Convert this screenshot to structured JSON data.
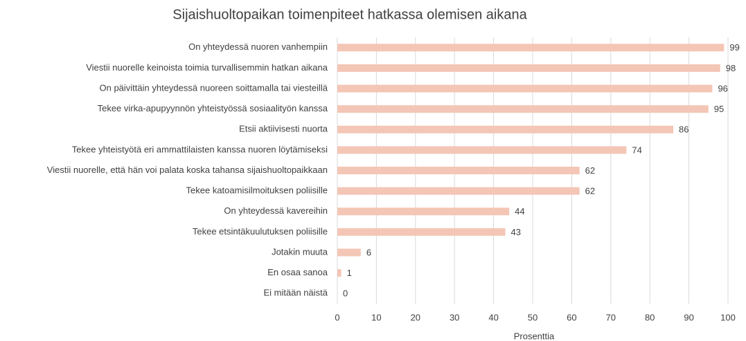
{
  "chart_data": {
    "type": "bar",
    "orientation": "horizontal",
    "title": "Sijaishuoltopaikan toimenpiteet hatkassa olemisen aikana",
    "xlabel": "Prosenttia",
    "categories": [
      "On yhteydessä nuoren vanhempiin",
      "Viestii nuorelle keinoista toimia turvallisemmin hatkan aikana",
      "On päivittäin yhteydessä nuoreen soittamalla tai viesteillä",
      "Tekee virka-apupyynnön yhteistyössä sosiaalityön kanssa",
      "Etsii aktiivisesti nuorta",
      "Tekee yhteistyötä eri ammattilaisten kanssa nuoren löytämiseksi",
      "Viestii nuorelle, että hän voi palata koska tahansa sijaishuoltopaikkaan",
      "Tekee katoamisilmoituksen poliisille",
      "On yhteydessä kavereihin",
      "Tekee etsintäkuulutuksen poliisille",
      "Jotakin muuta",
      "En osaa sanoa",
      "Ei mitään näistä"
    ],
    "values": [
      99,
      98,
      96,
      95,
      86,
      74,
      62,
      62,
      44,
      43,
      6,
      1,
      0
    ],
    "color": "#f4c6b6",
    "xlim": [
      0,
      100
    ],
    "xticks": [
      0,
      10,
      20,
      30,
      40,
      50,
      60,
      70,
      80,
      90,
      100
    ],
    "grid": true
  }
}
